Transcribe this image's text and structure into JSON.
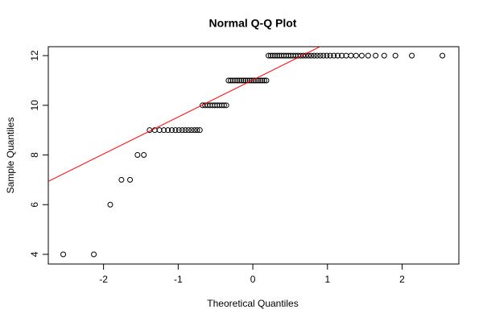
{
  "chart_data": {
    "type": "scatter",
    "title": "Normal Q-Q Plot",
    "xlabel": "Theoretical Quantiles",
    "ylabel": "Sample Quantiles",
    "x": [
      -2.54,
      -2.13,
      -1.91,
      -1.76,
      -1.645,
      -1.545,
      -1.46,
      -1.383,
      -1.314,
      -1.25,
      -1.192,
      -1.137,
      -1.085,
      -1.036,
      -0.99,
      -0.945,
      -0.903,
      -0.862,
      -0.822,
      -0.783,
      -0.746,
      -0.71,
      -0.674,
      -0.64,
      -0.606,
      -0.573,
      -0.54,
      -0.508,
      -0.477,
      -0.446,
      -0.415,
      -0.385,
      -0.355,
      -0.326,
      -0.297,
      -0.268,
      -0.239,
      -0.21,
      -0.182,
      -0.154,
      -0.126,
      -0.098,
      -0.07,
      -0.042,
      -0.014,
      0.014,
      0.042,
      0.07,
      0.098,
      0.126,
      0.154,
      0.182,
      0.21,
      0.239,
      0.268,
      0.297,
      0.326,
      0.355,
      0.385,
      0.415,
      0.446,
      0.477,
      0.508,
      0.54,
      0.573,
      0.606,
      0.64,
      0.674,
      0.71,
      0.746,
      0.783,
      0.822,
      0.862,
      0.903,
      0.945,
      0.99,
      1.036,
      1.085,
      1.137,
      1.192,
      1.25,
      1.314,
      1.383,
      1.46,
      1.545,
      1.645,
      1.76,
      1.91,
      2.13,
      2.54
    ],
    "values": [
      4,
      4,
      6,
      7,
      7,
      8,
      8,
      9,
      9,
      9,
      9,
      9,
      9,
      9,
      9,
      9,
      9,
      9,
      9,
      9,
      9,
      9,
      10,
      10,
      10,
      10,
      10,
      10,
      10,
      10,
      10,
      10,
      10,
      11,
      11,
      11,
      11,
      11,
      11,
      11,
      11,
      11,
      11,
      11,
      11,
      11,
      11,
      11,
      11,
      11,
      11,
      11,
      12,
      12,
      12,
      12,
      12,
      12,
      12,
      12,
      12,
      12,
      12,
      12,
      12,
      12,
      12,
      12,
      12,
      12,
      12,
      12,
      12,
      12,
      12,
      12,
      12,
      12,
      12,
      12,
      12,
      12,
      12,
      12,
      12,
      12,
      12,
      12,
      12,
      12
    ],
    "color": "#000000",
    "line": {
      "intercept": 11.02,
      "slope": 1.49,
      "color": "#ff0000"
    },
    "xlim": [
      -2.74,
      2.76
    ],
    "ylim": [
      3.61,
      12.36
    ],
    "xticks": [
      -2,
      -1,
      0,
      1,
      2
    ],
    "yticks": [
      4,
      6,
      8,
      10,
      12
    ]
  }
}
